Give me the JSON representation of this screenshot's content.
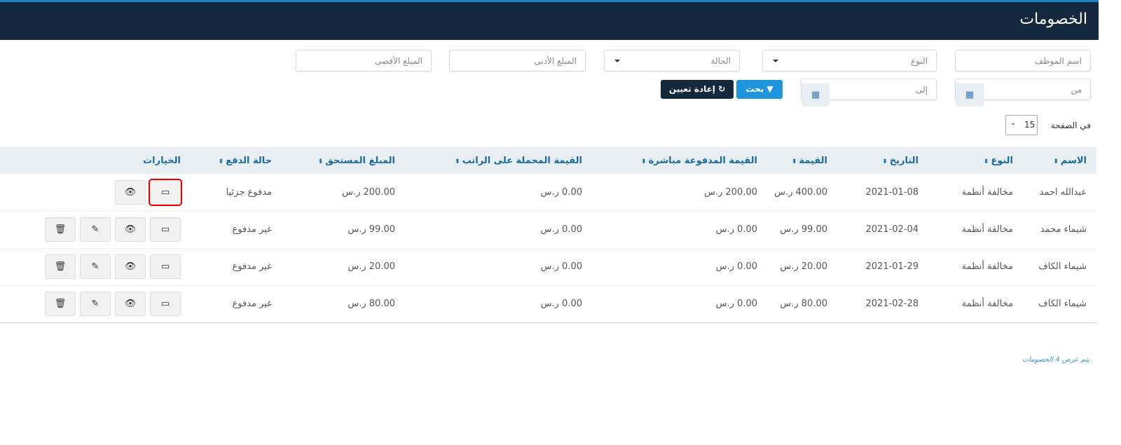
{
  "header": {
    "title": "الخصومات"
  },
  "filters": {
    "employee_name": "اسم الموظف",
    "type": "النوع",
    "status": "الحالة",
    "min_amount": "المبلغ الأدنى",
    "max_amount": "المبلغ الأقصى",
    "from": "من",
    "to": "إلى",
    "search_label": "بحث",
    "reset_label": "إعادة تعيين"
  },
  "pagination": {
    "per_page_label": "في الصفحة",
    "per_page_value": "15"
  },
  "table": {
    "columns": [
      "الاسم",
      "النوع",
      "التاريخ",
      "القيمة",
      "القيمة المدفوعة مباشرة",
      "القيمة المحملة على الراتب",
      "المبلغ المستحق",
      "حالة الدفع",
      "الخيارات"
    ],
    "rows": [
      [
        "عبدالله احمد",
        "مخالفة أنظمة",
        "2021-01-08",
        "400.00 ر.س",
        "200.00 ر.س",
        "0.00 ر.س",
        "200.00 ر.س",
        "مدفوع جزئيا"
      ],
      [
        "شيماء محمد",
        "مخالفة أنظمة",
        "2021-02-04",
        "99.00 ر.س",
        "0.00 ر.س",
        "0.00 ر.س",
        "99.00 ر.س",
        "غير مدفوع"
      ],
      [
        "شيماء الكاف",
        "مخالفة أنظمة",
        "2021-01-29",
        "20.00 ر.س",
        "0.00 ر.س",
        "0.00 ر.س",
        "20.00 ر.س",
        "غير مدفوع"
      ],
      [
        "شيماء الكاف",
        "مخالفة أنظمة",
        "2021-02-28",
        "80.00 ر.س",
        "0.00 ر.س",
        "0.00 ر.س",
        "80.00 ر.س",
        "غير مدفوع"
      ]
    ]
  },
  "footer": {
    "summary": "يتم عرض 4 الخصومات"
  },
  "colors": {
    "header_bg": "#14293d",
    "accent": "#1f86c6",
    "search_btn": "#1f96dc",
    "reset_btn": "#14293d",
    "highlight": "#ee0000"
  }
}
